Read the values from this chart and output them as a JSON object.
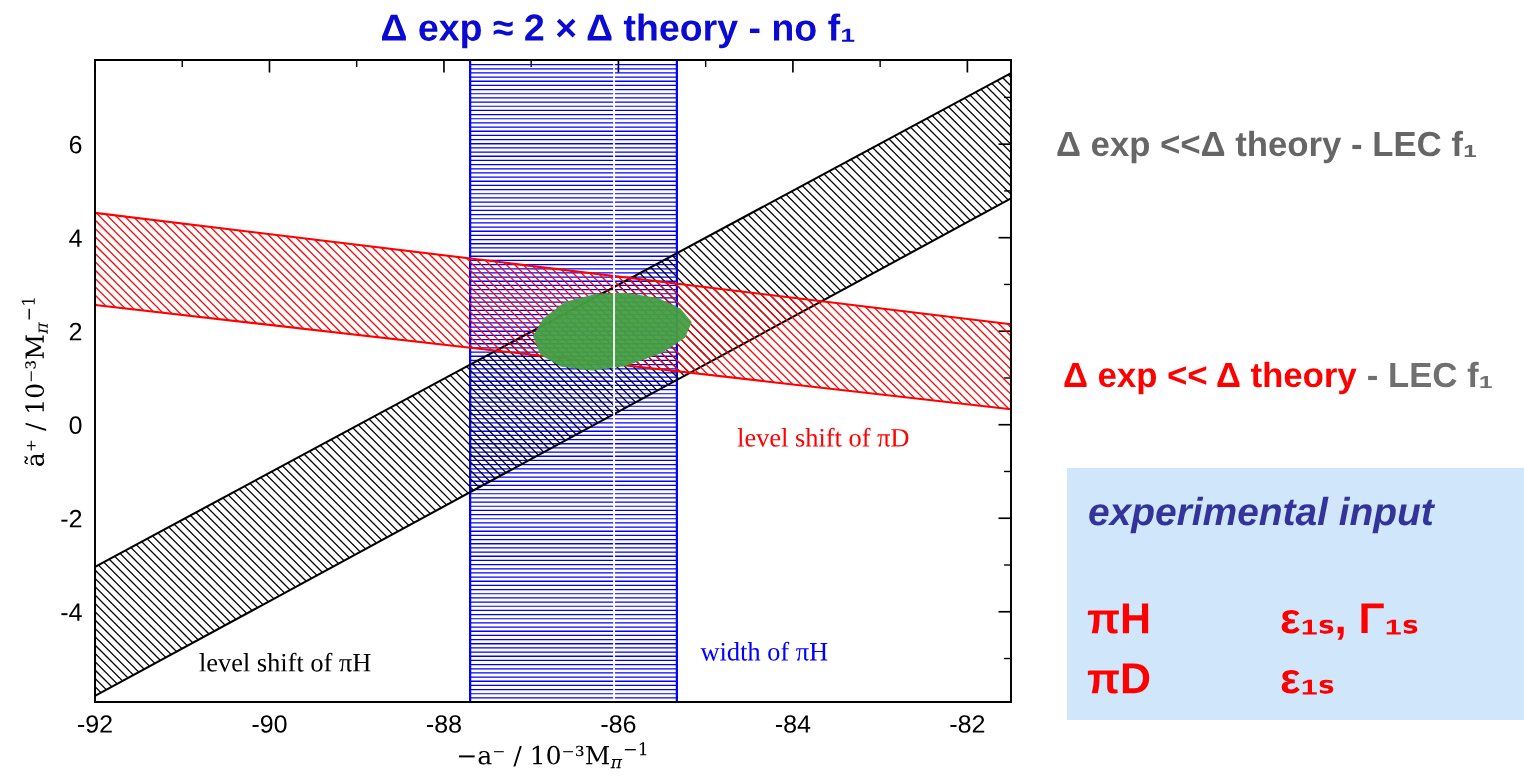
{
  "chart_data": {
    "type": "area",
    "title": "Δ exp ≈ 2 × Δ theory - no f₁",
    "xlabel": "−a⁻ / 10⁻³M$_{π}$$^{−1}$",
    "ylabel": "ã⁺ / 10⁻³M$_{π}$$^{−1}$",
    "xlim": [
      -92,
      -81.5
    ],
    "ylim": [
      -5.93,
      7.8
    ],
    "xticks": [
      -92,
      {
        "value": -91,
        "label": null
      },
      -90,
      {
        "value": -89,
        "label": null
      },
      -88,
      {
        "value": -87,
        "label": null
      },
      -86,
      {
        "value": -85,
        "label": null
      },
      -84,
      {
        "value": -83,
        "label": null
      },
      -82
    ],
    "yticks": [
      {
        "value": -5,
        "label": null
      },
      -4,
      {
        "value": -3,
        "label": null
      },
      -2,
      {
        "value": -1,
        "label": null
      },
      0,
      {
        "value": 1,
        "label": null
      },
      2,
      {
        "value": 3,
        "label": null
      },
      4,
      {
        "value": 5,
        "label": null
      },
      6,
      {
        "value": 7,
        "label": null
      }
    ],
    "series": [
      {
        "name": "level shift of πH",
        "color": "#000000",
        "x": [
          -92,
          -81.5,
          -81.5,
          -92,
          -92
        ],
        "values": [
          -3.04,
          7.52,
          4.84,
          -5.8,
          -3.04
        ]
      },
      {
        "name": "level shift of πD",
        "color": "#ff0000",
        "x": [
          -92,
          -81.5,
          -81.5,
          -92,
          -92
        ],
        "values": [
          4.53,
          2.15,
          0.33,
          2.56,
          4.53
        ]
      },
      {
        "color": "#44a044",
        "x": [
          -86.96,
          -86.85,
          -86.6,
          -86.25,
          -85.92,
          -85.55,
          -85.3,
          -85.18,
          -85.25,
          -85.52,
          -85.92,
          -86.3,
          -86.65,
          -86.88,
          -86.96
        ],
        "values": [
          1.89,
          2.25,
          2.6,
          2.77,
          2.79,
          2.68,
          2.46,
          2.19,
          1.88,
          1.55,
          1.29,
          1.19,
          1.27,
          1.52,
          1.89
        ]
      }
    ],
    "bands": [
      {
        "axis": "x",
        "from": -87.7,
        "to": -85.33,
        "label": "width of πH",
        "color": "#0000ff"
      }
    ],
    "ref_lines": [
      {
        "axis": "x",
        "value": -86.05,
        "color": "#ffffff"
      }
    ],
    "annotations": [
      "Δ exp <<Δ theory - LEC f₁",
      "Δ exp << Δ theory",
      "- LEC f₁",
      "experimental input",
      "πH",
      "ε₁ₛ, Γ₁ₛ",
      "πD",
      "ε₁ₛ"
    ]
  }
}
